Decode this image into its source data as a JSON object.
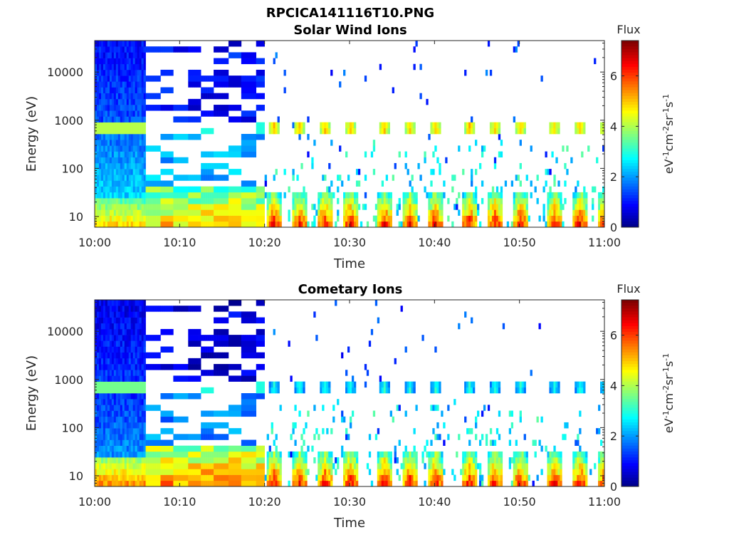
{
  "figure_title": "RPCICA141116T10.PNG",
  "colorbar": {
    "label": "Flux",
    "unit": "eV-1cm-2sr-1s-1",
    "ticks": [
      "0",
      "2",
      "4",
      "6"
    ],
    "range": [
      0,
      7.4
    ]
  },
  "chart_data": [
    {
      "type": "heatmap",
      "title": "Solar Wind Ions",
      "xlabel": "Time",
      "ylabel": "Energy (eV)",
      "x_ticks": [
        "10:00",
        "10:10",
        "10:20",
        "10:30",
        "10:40",
        "10:50",
        "11:00"
      ],
      "y_ticks": [
        "10",
        "100",
        "1000",
        "10000"
      ],
      "y_scale": "log",
      "ylim": [
        6,
        45000
      ],
      "xlim": [
        "10:00",
        "11:00"
      ],
      "energy_bins": [
        6,
        8,
        10,
        13,
        17,
        22,
        29,
        38,
        50,
        66,
        88,
        115,
        150,
        200,
        260,
        340,
        450,
        590,
        780,
        1020,
        1350,
        1770,
        2330,
        3060,
        4020,
        5280,
        6940,
        9120,
        12000,
        15700,
        20700,
        27200,
        35700,
        45000
      ],
      "regions": [
        {
          "time": [
            "10:00",
            "10:06"
          ],
          "description_level": "continuous",
          "low_energy_flux": 5,
          "mid_energy_flux": 2.5,
          "high_energy_flux": 1
        },
        {
          "time": [
            "10:06",
            "10:20"
          ],
          "description_level": "striped",
          "low_energy_flux": 5,
          "mid_energy_flux": 1.5,
          "high_energy_flux": 0.5
        },
        {
          "time": [
            "10:20",
            "11:00"
          ],
          "description_level": "periodic bursts",
          "low_energy_flux": 6.5,
          "peak_energy": 700,
          "peak_flux": 5
        }
      ],
      "burst_times": [
        "10:21",
        "10:24",
        "10:27",
        "10:30",
        "10:34",
        "10:37",
        "10:40",
        "10:44",
        "10:47",
        "10:50",
        "10:54",
        "10:57",
        "11:00"
      ]
    },
    {
      "type": "heatmap",
      "title": "Cometary Ions",
      "xlabel": "Time",
      "ylabel": "Energy (eV)",
      "x_ticks": [
        "10:00",
        "10:10",
        "10:20",
        "10:30",
        "10:40",
        "10:50",
        "11:00"
      ],
      "y_ticks": [
        "10",
        "100",
        "1000",
        "10000"
      ],
      "y_scale": "log",
      "ylim": [
        6,
        45000
      ],
      "xlim": [
        "10:00",
        "11:00"
      ],
      "regions": [
        {
          "time": [
            "10:00",
            "10:06"
          ],
          "description_level": "continuous",
          "low_energy_flux": 5.5,
          "mid_energy_flux": 2,
          "high_energy_flux": 0.8
        },
        {
          "time": [
            "10:06",
            "10:20"
          ],
          "description_level": "striped",
          "low_energy_flux": 5.5,
          "mid_energy_flux": 1.2,
          "high_energy_flux": 0.3
        },
        {
          "time": [
            "10:20",
            "11:00"
          ],
          "description_level": "periodic bursts",
          "low_energy_flux": 6.5,
          "peak_energy": 700,
          "peak_flux": 3
        }
      ],
      "burst_times": [
        "10:21",
        "10:24",
        "10:27",
        "10:30",
        "10:34",
        "10:37",
        "10:40",
        "10:44",
        "10:47",
        "10:50",
        "10:54",
        "10:57",
        "11:00"
      ]
    }
  ]
}
